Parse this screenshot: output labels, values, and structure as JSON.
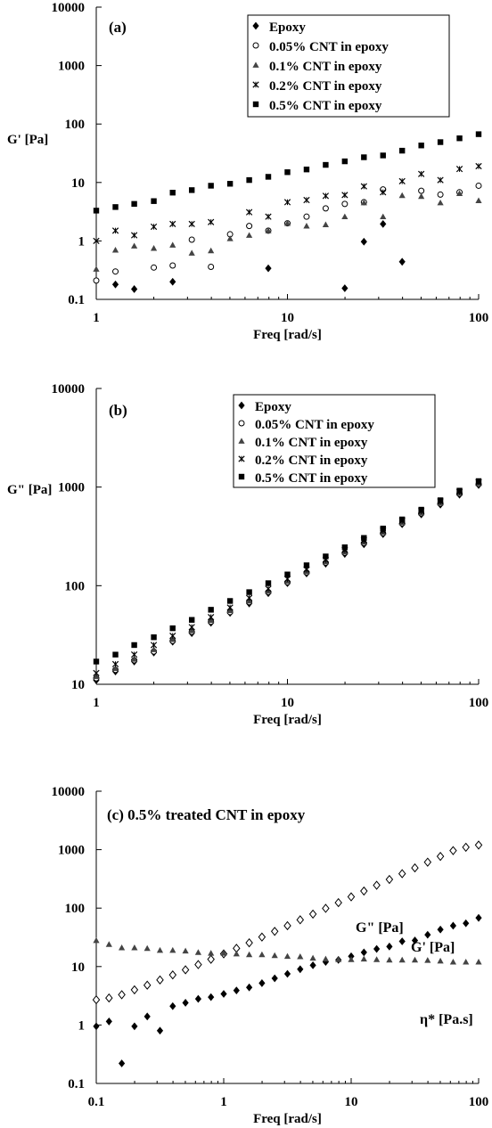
{
  "chart_data": [
    {
      "type": "scatter",
      "panel_label": "(a)",
      "xscale": "log",
      "yscale": "log",
      "xlim": [
        1,
        100
      ],
      "ylim": [
        0.1,
        10000
      ],
      "xlabel": "Freq [rad/s]",
      "ylabel": "G' [Pa]",
      "xticks": [
        "1",
        "10",
        "100"
      ],
      "yticks": [
        "0.1",
        "1",
        "10",
        "100",
        "1000",
        "10000"
      ],
      "legend": "top-right",
      "series": [
        {
          "name": "Epoxy",
          "marker": "diamond",
          "x": [
            1.26,
            1.58,
            2.51,
            7.94,
            19.95,
            25.12,
            31.62,
            39.81
          ],
          "y": [
            0.18,
            0.15,
            0.2,
            0.34,
            0.155,
            0.97,
            1.95,
            0.44
          ]
        },
        {
          "name": "0.05% CNT in epoxy",
          "marker": "circle",
          "x": [
            1.0,
            1.26,
            2.0,
            2.51,
            3.16,
            3.98,
            5.01,
            6.31,
            7.94,
            10.0,
            12.59,
            15.85,
            19.95,
            25.12,
            31.62,
            50.12,
            63.1,
            79.43,
            100
          ],
          "y": [
            0.21,
            0.3,
            0.35,
            0.38,
            1.05,
            0.36,
            1.3,
            1.8,
            1.5,
            2.0,
            2.6,
            3.6,
            4.3,
            4.6,
            7.6,
            7.2,
            6.2,
            6.8,
            8.8
          ]
        },
        {
          "name": "0.1% CNT in epoxy",
          "marker": "triangle",
          "x": [
            1.0,
            1.26,
            1.58,
            2.0,
            2.51,
            3.16,
            3.98,
            5.01,
            6.31,
            7.94,
            10.0,
            12.59,
            15.85,
            19.95,
            25.12,
            31.62,
            39.81,
            50.12,
            63.1,
            79.43,
            100
          ],
          "y": [
            0.33,
            0.7,
            0.82,
            0.75,
            0.85,
            0.62,
            0.68,
            1.1,
            1.25,
            1.5,
            2.0,
            1.8,
            1.9,
            2.6,
            4.5,
            2.6,
            6.0,
            5.8,
            4.5,
            6.5,
            4.9
          ]
        },
        {
          "name": "0.2% CNT in epoxy",
          "marker": "cross",
          "x": [
            1.0,
            1.26,
            1.58,
            2.0,
            2.51,
            3.16,
            3.98,
            6.31,
            7.94,
            10.0,
            12.59,
            15.85,
            19.95,
            25.12,
            31.62,
            39.81,
            50.12,
            63.1,
            79.43,
            100
          ],
          "y": [
            1.0,
            1.5,
            1.25,
            1.75,
            1.95,
            1.95,
            2.1,
            3.1,
            2.6,
            4.6,
            5.0,
            5.9,
            6.1,
            8.6,
            6.8,
            10.5,
            14.0,
            11.0,
            17.0,
            19.0
          ]
        },
        {
          "name": "0.5% CNT in epoxy",
          "marker": "square",
          "x": [
            1.0,
            1.26,
            1.58,
            2.0,
            2.51,
            3.16,
            3.98,
            5.01,
            6.31,
            7.94,
            10.0,
            12.59,
            15.85,
            19.95,
            25.12,
            31.62,
            39.81,
            50.12,
            63.1,
            79.43,
            100
          ],
          "y": [
            3.3,
            3.8,
            4.3,
            4.8,
            6.7,
            7.4,
            8.8,
            9.5,
            11.0,
            12.5,
            15.0,
            16.7,
            20.0,
            23.0,
            27.0,
            29.0,
            35.0,
            43.0,
            49.0,
            57.0,
            67.0
          ]
        }
      ]
    },
    {
      "type": "scatter",
      "panel_label": "(b)",
      "xscale": "log",
      "yscale": "log",
      "xlim": [
        1,
        100
      ],
      "ylim": [
        10,
        10000
      ],
      "xlabel": "Freq [rad/s]",
      "ylabel": "G\" [Pa]",
      "xticks": [
        "1",
        "10",
        "100"
      ],
      "yticks": [
        "10",
        "100",
        "1000",
        "10000"
      ],
      "legend": "top-right",
      "series": [
        {
          "name": "Epoxy",
          "marker": "diamond",
          "x": [
            1.0,
            1.26,
            1.58,
            2.0,
            2.51,
            3.16,
            3.98,
            5.01,
            6.31,
            7.94,
            10.0,
            12.59,
            15.85,
            19.95,
            25.12,
            31.62,
            39.81,
            50.12,
            63.1,
            79.43,
            100
          ],
          "y": [
            11,
            13.5,
            17,
            21,
            27,
            33,
            42,
            53,
            66,
            84,
            106,
            133,
            167,
            210,
            263,
            333,
            420,
            528,
            664,
            837,
            1050
          ]
        },
        {
          "name": "0.05% CNT in epoxy",
          "marker": "circle",
          "x": [
            1.0,
            1.26,
            1.58,
            2.0,
            2.51,
            3.16,
            3.98,
            5.01,
            6.31,
            7.94,
            10.0,
            12.59,
            15.85,
            19.95,
            25.12,
            31.62,
            39.81,
            50.12,
            63.1,
            79.43,
            100
          ],
          "y": [
            11.5,
            14,
            17.5,
            21.5,
            27.5,
            34,
            43,
            54,
            68,
            86,
            108,
            136,
            171,
            215,
            270,
            340,
            428,
            540,
            680,
            855,
            1070
          ]
        },
        {
          "name": "0.1% CNT in epoxy",
          "marker": "triangle",
          "x": [
            1.0,
            1.26,
            1.58,
            2.0,
            2.51,
            3.16,
            3.98,
            5.01,
            6.31,
            7.94,
            10.0,
            12.59,
            15.85,
            19.95,
            25.12,
            31.62,
            39.81,
            50.12,
            63.1,
            79.43,
            100
          ],
          "y": [
            12,
            14.5,
            18,
            22.5,
            28.5,
            35,
            44.5,
            56,
            70,
            88,
            111,
            139,
            175,
            220,
            276,
            348,
            437,
            550,
            692,
            870,
            1090
          ]
        },
        {
          "name": "0.2% CNT in epoxy",
          "marker": "cross",
          "x": [
            1.0,
            1.26,
            1.58,
            2.0,
            2.51,
            3.16,
            3.98,
            5.01,
            6.31,
            7.94,
            10.0,
            12.59,
            15.85,
            19.95,
            25.12,
            31.62,
            39.81,
            50.12,
            63.1,
            79.43,
            100
          ],
          "y": [
            13,
            16,
            20,
            25,
            31,
            38,
            48,
            60,
            75,
            93,
            117,
            146,
            183,
            230,
            288,
            362,
            455,
            570,
            715,
            895,
            1120
          ]
        },
        {
          "name": "0.5% CNT in epoxy",
          "marker": "square",
          "x": [
            1.0,
            1.26,
            1.58,
            2.0,
            2.51,
            3.16,
            3.98,
            5.01,
            6.31,
            7.94,
            10.0,
            12.59,
            15.85,
            19.95,
            25.12,
            31.62,
            39.81,
            50.12,
            63.1,
            79.43,
            100
          ],
          "y": [
            17,
            20,
            25,
            30,
            37,
            45,
            57,
            70,
            86,
            106,
            130,
            161,
            198,
            245,
            305,
            380,
            470,
            590,
            735,
            920,
            1150
          ]
        }
      ]
    },
    {
      "type": "scatter",
      "panel_label": "(c) 0.5% treated CNT in epoxy",
      "xscale": "log",
      "yscale": "log",
      "xlim": [
        0.1,
        100
      ],
      "ylim": [
        0.1,
        10000
      ],
      "xlabel": "Freq [rad/s]",
      "ylabel": "",
      "xticks": [
        "0.1",
        "1",
        "10",
        "100"
      ],
      "yticks": [
        "0.1",
        "1",
        "10",
        "100",
        "1000",
        "10000"
      ],
      "legend": "none",
      "series": [
        {
          "name": "G\" [Pa]",
          "marker": "open-diamond",
          "x": [
            0.1,
            0.1259,
            0.1585,
            0.1995,
            0.2512,
            0.3162,
            0.3981,
            0.5012,
            0.631,
            0.7943,
            1.0,
            1.259,
            1.585,
            1.995,
            2.512,
            3.162,
            3.981,
            5.012,
            6.31,
            7.943,
            10.0,
            12.59,
            15.85,
            19.95,
            25.12,
            31.62,
            39.81,
            50.12,
            63.1,
            79.43,
            100
          ],
          "y": [
            2.7,
            2.9,
            3.3,
            4.0,
            4.8,
            5.9,
            7.2,
            8.8,
            10.8,
            13.3,
            16.5,
            20.5,
            25.5,
            32,
            40,
            50,
            63,
            79,
            99,
            124,
            156,
            196,
            246,
            309,
            388,
            487,
            611,
            767,
            963,
            1100,
            1200
          ]
        },
        {
          "name": "G' [Pa]",
          "marker": "diamond",
          "x": [
            0.1,
            0.1259,
            0.1585,
            0.1995,
            0.2512,
            0.3162,
            0.3981,
            0.5012,
            0.631,
            0.7943,
            1.0,
            1.259,
            1.585,
            1.995,
            2.512,
            3.162,
            3.981,
            5.012,
            6.31,
            7.943,
            10.0,
            12.59,
            15.85,
            19.95,
            25.12,
            31.62,
            39.81,
            50.12,
            63.1,
            79.43,
            100
          ],
          "y": [
            0.95,
            1.15,
            0.22,
            0.95,
            1.4,
            0.8,
            2.1,
            2.4,
            2.8,
            3.0,
            3.4,
            3.9,
            4.4,
            5.2,
            6.3,
            7.5,
            9.0,
            10.5,
            12.0,
            13.0,
            15.0,
            17.5,
            20.0,
            22.0,
            27.0,
            28.0,
            35.0,
            43.0,
            50.0,
            55.0,
            68.0
          ]
        },
        {
          "name": "η* [Pa.s]",
          "marker": "triangle",
          "x": [
            0.1,
            0.1259,
            0.1585,
            0.1995,
            0.2512,
            0.3162,
            0.3981,
            0.5012,
            0.631,
            0.7943,
            1.0,
            1.259,
            1.585,
            1.995,
            2.512,
            3.162,
            3.981,
            5.012,
            6.31,
            7.943,
            10.0,
            12.59,
            15.85,
            19.95,
            25.12,
            31.62,
            39.81,
            50.12,
            63.1,
            79.43,
            100
          ],
          "y": [
            28,
            24,
            21,
            21,
            20.5,
            19,
            19,
            18.5,
            17.5,
            17,
            17,
            16.5,
            16,
            16,
            15.5,
            15,
            14.8,
            14,
            13.5,
            13.2,
            13.2,
            13.5,
            13.2,
            13,
            13,
            13,
            12.8,
            12.5,
            12,
            12,
            12
          ]
        }
      ],
      "curve_labels": [
        "G\" [Pa]",
        "G' [Pa]",
        "η* [Pa.s]"
      ]
    }
  ]
}
